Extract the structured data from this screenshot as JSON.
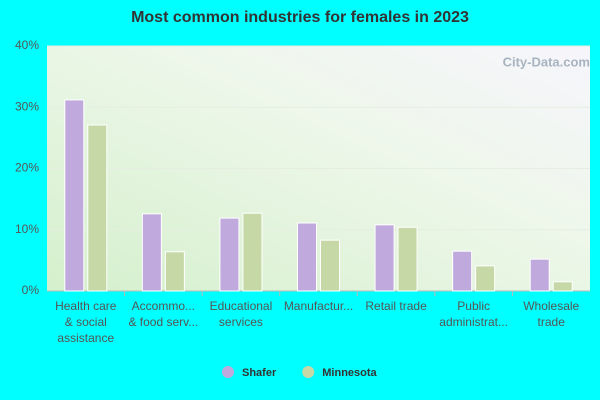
{
  "chart_data": {
    "type": "bar",
    "title": "Most common industries for females in 2023",
    "watermark": "City-Data.com",
    "categories": [
      "Health care\n& social\nassistance",
      "Accommo...\n& food serv...",
      "Educational\nservices",
      "Manufactur...",
      "Retail trade",
      "Public\nadministrat...",
      "Wholesale\ntrade"
    ],
    "series": [
      {
        "name": "Shafer",
        "color": "#c0a9dc",
        "values": [
          31.2,
          12.6,
          11.9,
          11.1,
          10.8,
          6.5,
          5.2
        ]
      },
      {
        "name": "Minnesota",
        "color": "#c5d8a6",
        "values": [
          27.1,
          6.4,
          12.7,
          8.3,
          10.4,
          4.1,
          1.5
        ]
      }
    ],
    "ylim": [
      0,
      40
    ],
    "yticks": [
      {
        "value": 0,
        "label": "0%"
      },
      {
        "value": 10,
        "label": "10%"
      },
      {
        "value": 20,
        "label": "20%"
      },
      {
        "value": 30,
        "label": "30%"
      },
      {
        "value": 40,
        "label": "40%"
      }
    ],
    "grid": true
  }
}
